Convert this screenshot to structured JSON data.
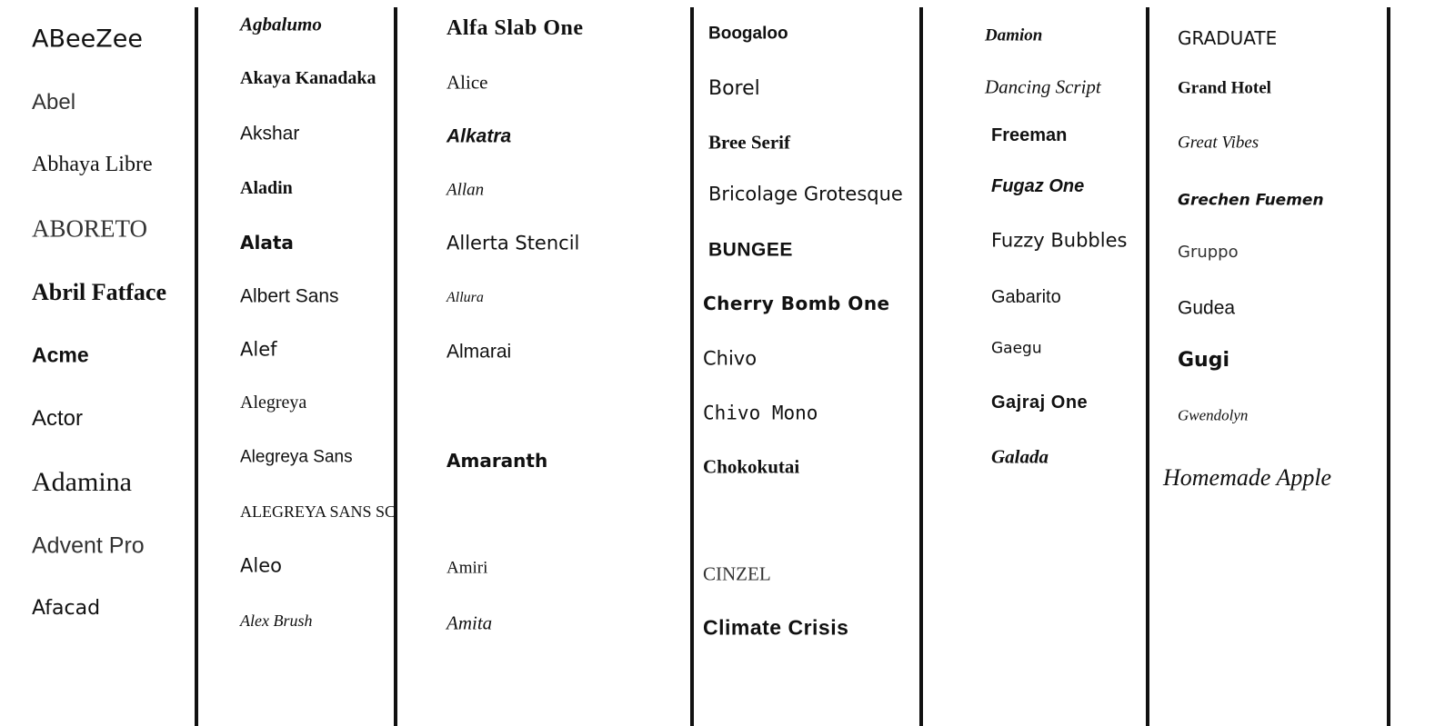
{
  "columns": [
    {
      "items": [
        "ABeeZee",
        "Abel",
        "Abhaya Libre",
        "ABORETO",
        "Abril Fatface",
        "Acme",
        "Actor",
        "Adamina",
        "Advent Pro",
        "Afacad"
      ]
    },
    {
      "items": [
        "Agbalumo",
        "Akaya Kanadaka",
        "Akshar",
        "Aladin",
        "Alata",
        "Albert Sans",
        "Alef",
        "Alegreya",
        "Alegreya Sans",
        "Alegreya Sans SC",
        "Aleo",
        "Alex Brush"
      ]
    },
    {
      "items": [
        "Alfa Slab One",
        "Alice",
        "Alkatra",
        "Allan",
        "Allerta Stencil",
        "Allura",
        "Almarai",
        "Amaranth",
        "Amiri",
        "Amita"
      ]
    },
    {
      "items": [
        "Boogaloo",
        "Borel",
        "Bree Serif",
        "Bricolage Grotesque",
        "BUNGEE",
        "Cherry Bomb One",
        "Chivo",
        "Chivo Mono",
        "Chokokutai",
        "CINZEL",
        "Climate Crisis"
      ]
    },
    {
      "items": [
        "Damion",
        "Dancing Script",
        "Freeman",
        "Fugaz One",
        "Fuzzy Bubbles",
        "Gabarito",
        "Gaegu",
        "Gajraj One",
        "Galada"
      ]
    },
    {
      "items": [
        "GRADUATE",
        "Grand Hotel",
        "Great Vibes",
        "Grechen Fuemen",
        "Gruppo",
        "Gudea",
        "Gugi",
        "Gwendolyn",
        "Homemade Apple"
      ]
    }
  ]
}
